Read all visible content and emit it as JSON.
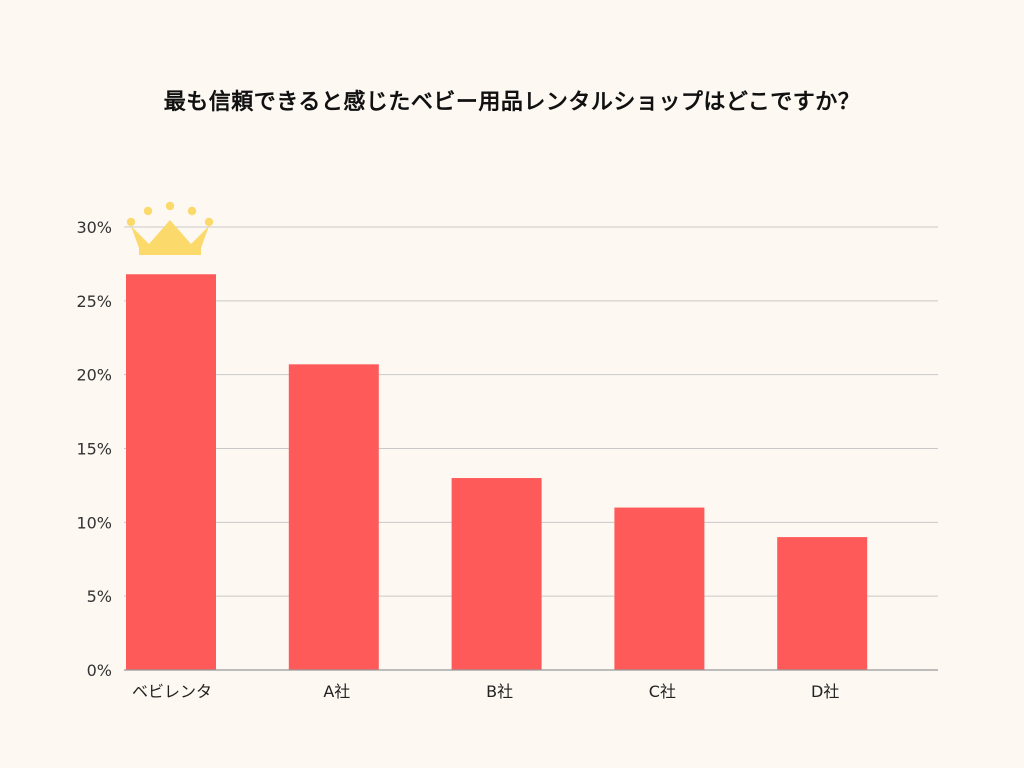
{
  "chart_data": {
    "type": "bar",
    "title": "最も信頼できると感じたベビー用品レンタルショップはどこですか？",
    "categories": [
      "ベビレンタ",
      "A社",
      "B社",
      "C社",
      "D社"
    ],
    "values": [
      26.8,
      20.7,
      13.0,
      11.0,
      9.0
    ],
    "ylim": [
      0,
      30
    ],
    "yticks": [
      "0%",
      "5%",
      "10%",
      "15%",
      "20%",
      "25%",
      "30%"
    ],
    "ytick_values": [
      0,
      5,
      10,
      15,
      20,
      25,
      30
    ],
    "xlabel": "",
    "ylabel": "",
    "grid": true,
    "highlight_index": 0,
    "colors": {
      "bar": "#ff5a5a",
      "grid": "#c9c9c9",
      "axis": "#999999",
      "crown": "#fbd96a",
      "background": "#fdf8f2"
    }
  }
}
